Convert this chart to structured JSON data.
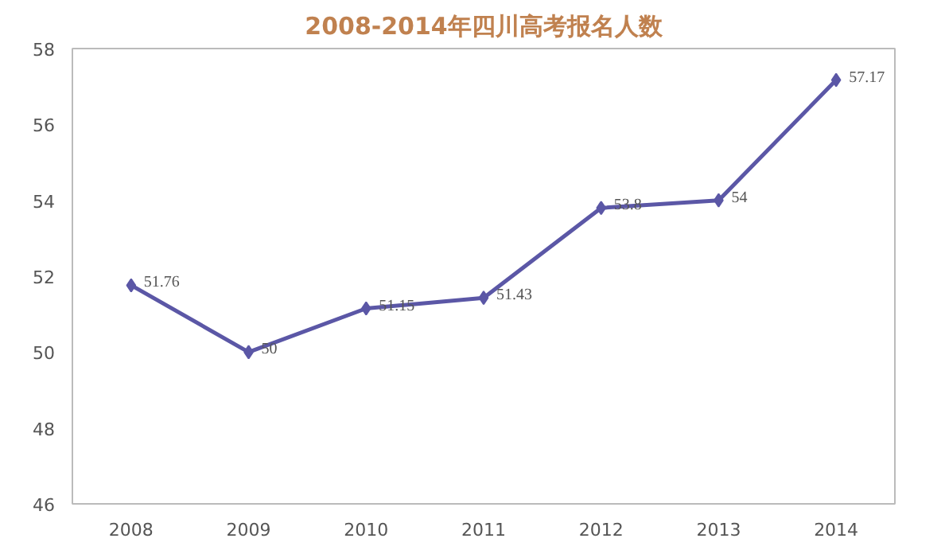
{
  "chart_data": {
    "type": "line",
    "title": "2008-2014年四川高考报名人数",
    "categories": [
      "2008",
      "2009",
      "2010",
      "2011",
      "2012",
      "2013",
      "2014"
    ],
    "series": [
      {
        "color": "#5b57a6",
        "values": [
          51.76,
          50,
          51.15,
          51.43,
          53.8,
          54,
          57.17
        ]
      }
    ],
    "ylim": [
      46,
      58
    ],
    "yticks": [
      46,
      48,
      50,
      52,
      54,
      56,
      58
    ],
    "grid": false,
    "marker": "diamond",
    "line_style": "solid",
    "data_labels": true
  }
}
